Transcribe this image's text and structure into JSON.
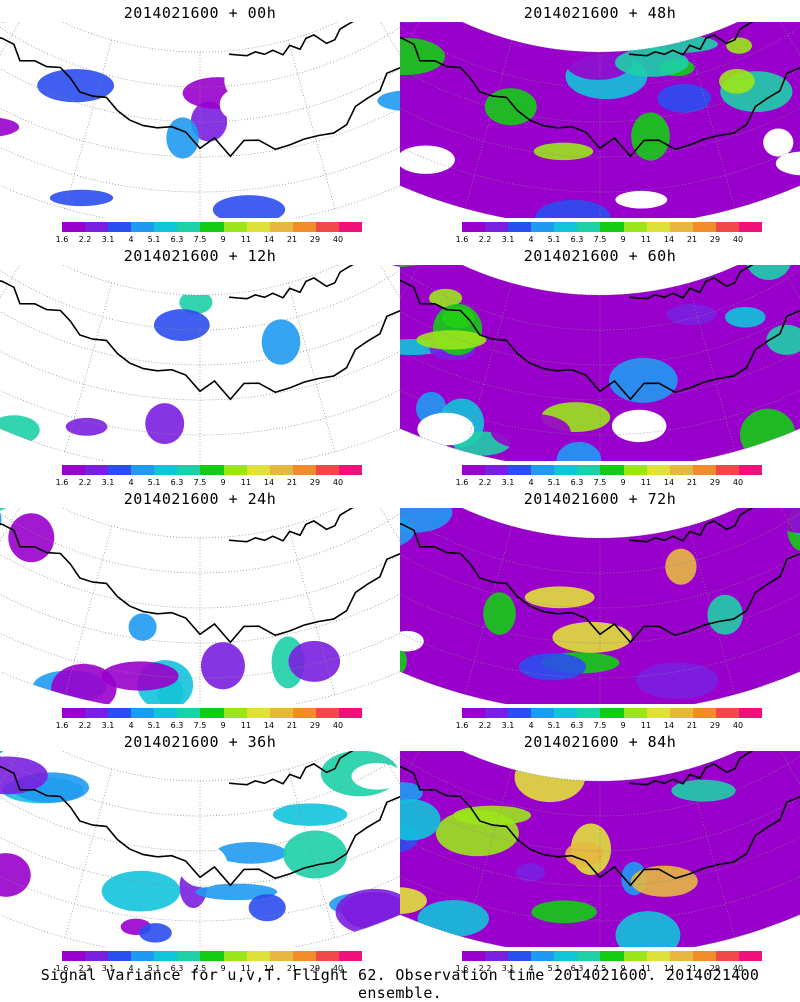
{
  "panels": [
    {
      "title": "2014021600 + 00h",
      "level": 0.15
    },
    {
      "title": "2014021600 + 48h",
      "level": 0.55
    },
    {
      "title": "2014021600 + 12h",
      "level": 0.25
    },
    {
      "title": "2014021600 + 60h",
      "level": 0.6
    },
    {
      "title": "2014021600 + 24h",
      "level": 0.3
    },
    {
      "title": "2014021600 + 72h",
      "level": 0.7
    },
    {
      "title": "2014021600 + 36h",
      "level": 0.35
    },
    {
      "title": "2014021600 + 84h",
      "level": 0.75
    }
  ],
  "colorbar": {
    "labels": [
      "1.6",
      "2.2",
      "3.1",
      "4",
      "5.1",
      "6.3",
      "7.5",
      "9",
      "11",
      "14",
      "21",
      "29",
      "40"
    ],
    "colors": [
      "#9900cc",
      "#7a1fe0",
      "#2b4ef0",
      "#1f9af2",
      "#12c3dc",
      "#1dd0a8",
      "#14cc14",
      "#9be61a",
      "#e0e03a",
      "#e6b840",
      "#f08c2a",
      "#f04848",
      "#f0107a"
    ]
  },
  "caption": "Signal Variance for u,v,T. Flight 62. Observation time 2014021600. 2014021400 ensemble."
}
